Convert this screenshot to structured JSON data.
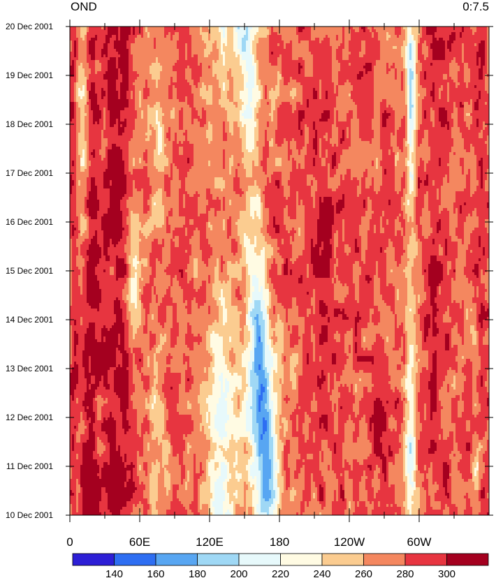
{
  "chart_data": {
    "type": "heatmap",
    "title_left": "OND",
    "title_right": "0:7.5",
    "x_ticks": [
      "0",
      "60E",
      "120E",
      "180",
      "120W",
      "60W"
    ],
    "y_ticks": [
      "10 Dec 2001",
      "11 Dec 2001",
      "12 Dec 2001",
      "13 Dec 2001",
      "14 Dec 2001",
      "15 Dec 2001",
      "16 Dec 2001",
      "17 Dec 2001",
      "18 Dec 2001",
      "19 Dec 2001",
      "20 Dec 2001"
    ],
    "x_range_deg_east": [
      0,
      360
    ],
    "y_range": [
      "10 Dec 2001",
      "20 Dec 2001"
    ],
    "colorbar": {
      "levels": [
        140,
        160,
        180,
        200,
        220,
        240,
        260,
        280,
        300
      ],
      "colors": [
        "#2d1fd6",
        "#2e6ef2",
        "#58a6f2",
        "#9fd8f5",
        "#e7f9fb",
        "#fffbe3",
        "#fbcc90",
        "#f4875f",
        "#e73540",
        "#a4001f"
      ]
    },
    "field_description_bands": [
      {
        "lon_from": 0,
        "lon_to": 360,
        "level": 280
      }
    ]
  }
}
